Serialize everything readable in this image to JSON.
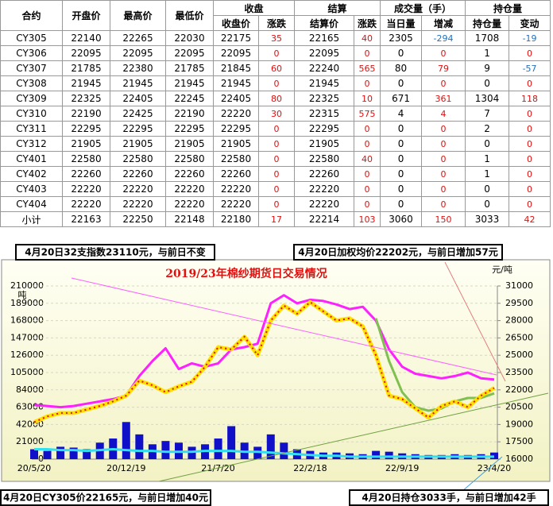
{
  "table": {
    "group_headers": [
      "收盘",
      "结算",
      "成交量（手）",
      "持仓量"
    ],
    "headers": [
      "合约",
      "开盘价",
      "最高价",
      "最低价",
      "收盘价",
      "涨跌",
      "结算价",
      "涨跌",
      "当日量",
      "增减",
      "持仓量",
      "变动"
    ],
    "rows": [
      [
        "CY305",
        22140,
        22265,
        22030,
        22175,
        35,
        22165,
        40,
        2305,
        -294,
        1708,
        -19
      ],
      [
        "CY306",
        22095,
        22095,
        22095,
        22095,
        0,
        22095,
        0,
        0,
        0,
        1,
        0
      ],
      [
        "CY307",
        21785,
        22380,
        21785,
        21845,
        60,
        22240,
        565,
        80,
        79,
        9,
        -57
      ],
      [
        "CY308",
        21945,
        21945,
        21945,
        21945,
        0,
        21945,
        0,
        0,
        0,
        0,
        0
      ],
      [
        "CY309",
        22325,
        22405,
        22245,
        22405,
        80,
        22325,
        10,
        671,
        361,
        1304,
        118
      ],
      [
        "CY310",
        22190,
        22425,
        22190,
        22220,
        30,
        22315,
        575,
        4,
        4,
        7,
        0
      ],
      [
        "CY311",
        22295,
        22295,
        22295,
        22295,
        0,
        22295,
        0,
        0,
        0,
        2,
        0
      ],
      [
        "CY312",
        21905,
        21905,
        21905,
        21905,
        0,
        21905,
        0,
        0,
        0,
        0,
        0
      ],
      [
        "CY401",
        22580,
        22580,
        22580,
        22580,
        0,
        22580,
        40,
        0,
        0,
        1,
        0
      ],
      [
        "CY402",
        22260,
        22260,
        22260,
        22260,
        0,
        22260,
        0,
        0,
        0,
        1,
        0
      ],
      [
        "CY403",
        22220,
        22220,
        22220,
        22220,
        0,
        22220,
        0,
        0,
        0,
        0,
        0
      ],
      [
        "CY404",
        22220,
        22220,
        22220,
        22220,
        0,
        22220,
        0,
        0,
        0,
        0,
        0
      ],
      [
        "小计",
        22163,
        22250,
        22148,
        22180,
        17,
        22214,
        103,
        3060,
        150,
        3033,
        42
      ]
    ]
  },
  "notes": [
    "4月20日32支指数23110元，与前日不变",
    "4月20日加权均价22202元，与前日增加57元",
    "4月20日CY305价22165元，与前日增加40元",
    "4月20日持仓3033手，与前日增加42手"
  ],
  "chart_data": {
    "type": "combo",
    "title": "2019/23年棉纱期货日交易情况",
    "ylabel": "吨",
    "y2label": "元/吨",
    "categories": [
      "20/5/20",
      null,
      null,
      null,
      null,
      null,
      null,
      "20/12/19",
      null,
      null,
      null,
      null,
      null,
      null,
      "21/7/20",
      null,
      null,
      null,
      null,
      null,
      null,
      "22/2/18",
      null,
      null,
      null,
      null,
      null,
      null,
      "22/9/19",
      null,
      null,
      null,
      null,
      null,
      null,
      "23/4/20"
    ],
    "ylim": [
      0,
      210000
    ],
    "yticks": [
      0,
      21000,
      42000,
      63000,
      84000,
      105000,
      126000,
      147000,
      168000,
      189000,
      210000
    ],
    "y2lim": [
      16000,
      31000
    ],
    "y2ticks": [
      16000,
      17500,
      19000,
      20500,
      22000,
      23500,
      25000,
      26500,
      28000,
      29500,
      31000
    ],
    "grid": true,
    "series": [
      {
        "type": "bar",
        "color": "#1010c8",
        "values": [
          12000,
          10000,
          15000,
          14000,
          12000,
          20000,
          25000,
          45000,
          30000,
          18000,
          22000,
          20000,
          15000,
          18000,
          25000,
          40000,
          20000,
          15000,
          30000,
          20000,
          12000,
          10000,
          8000,
          8000,
          7000,
          6000,
          10000,
          9000,
          7000,
          6000,
          5000,
          5000,
          6000,
          5000,
          6000,
          8000
        ]
      },
      {
        "type": "line",
        "color": "#30e0f0",
        "values": [
          12000,
          12000,
          11000,
          11000,
          10000,
          11000,
          12000,
          11000,
          10000,
          10000,
          9000,
          9000,
          9000,
          10000,
          10000,
          10000,
          9000,
          9000,
          8000,
          7000,
          6000,
          5000,
          4000,
          4000,
          3000,
          3000,
          3000,
          3000,
          3000,
          3000,
          3000,
          3000,
          3000,
          3000,
          3000,
          3000
        ]
      },
      {
        "type": "line",
        "axis": "y2",
        "color": "#ff20ff",
        "values": [
          20700,
          20600,
          20500,
          20600,
          20800,
          21000,
          21200,
          21500,
          23200,
          24500,
          25600,
          23800,
          24300,
          24000,
          24300,
          25500,
          25700,
          26000,
          29500,
          30200,
          29500,
          29800,
          29700,
          29400,
          29000,
          29200,
          28000,
          25500,
          24000,
          23400,
          23200,
          23000,
          23200,
          23500,
          23000,
          22900
        ]
      },
      {
        "type": "line",
        "axis": "y2",
        "color": "#80c050",
        "values": [
          null,
          null,
          null,
          null,
          null,
          null,
          null,
          null,
          null,
          null,
          null,
          null,
          null,
          null,
          null,
          null,
          null,
          null,
          null,
          null,
          null,
          null,
          null,
          null,
          null,
          null,
          28200,
          24500,
          21800,
          20500,
          20200,
          20400,
          21000,
          21300,
          21300,
          21700
        ]
      },
      {
        "type": "line",
        "axis": "y2",
        "color": "#ffe000",
        "dot_color": "#e01010",
        "values": [
          19200,
          19700,
          20000,
          20000,
          20300,
          20600,
          21000,
          21500,
          22800,
          22400,
          21800,
          22300,
          22700,
          24000,
          25700,
          25500,
          26600,
          25000,
          28000,
          29300,
          28600,
          29600,
          28800,
          28000,
          28200,
          27500,
          25000,
          21500,
          21200,
          20400,
          19600,
          20600,
          21000,
          20500,
          21500,
          22165
        ]
      }
    ]
  }
}
